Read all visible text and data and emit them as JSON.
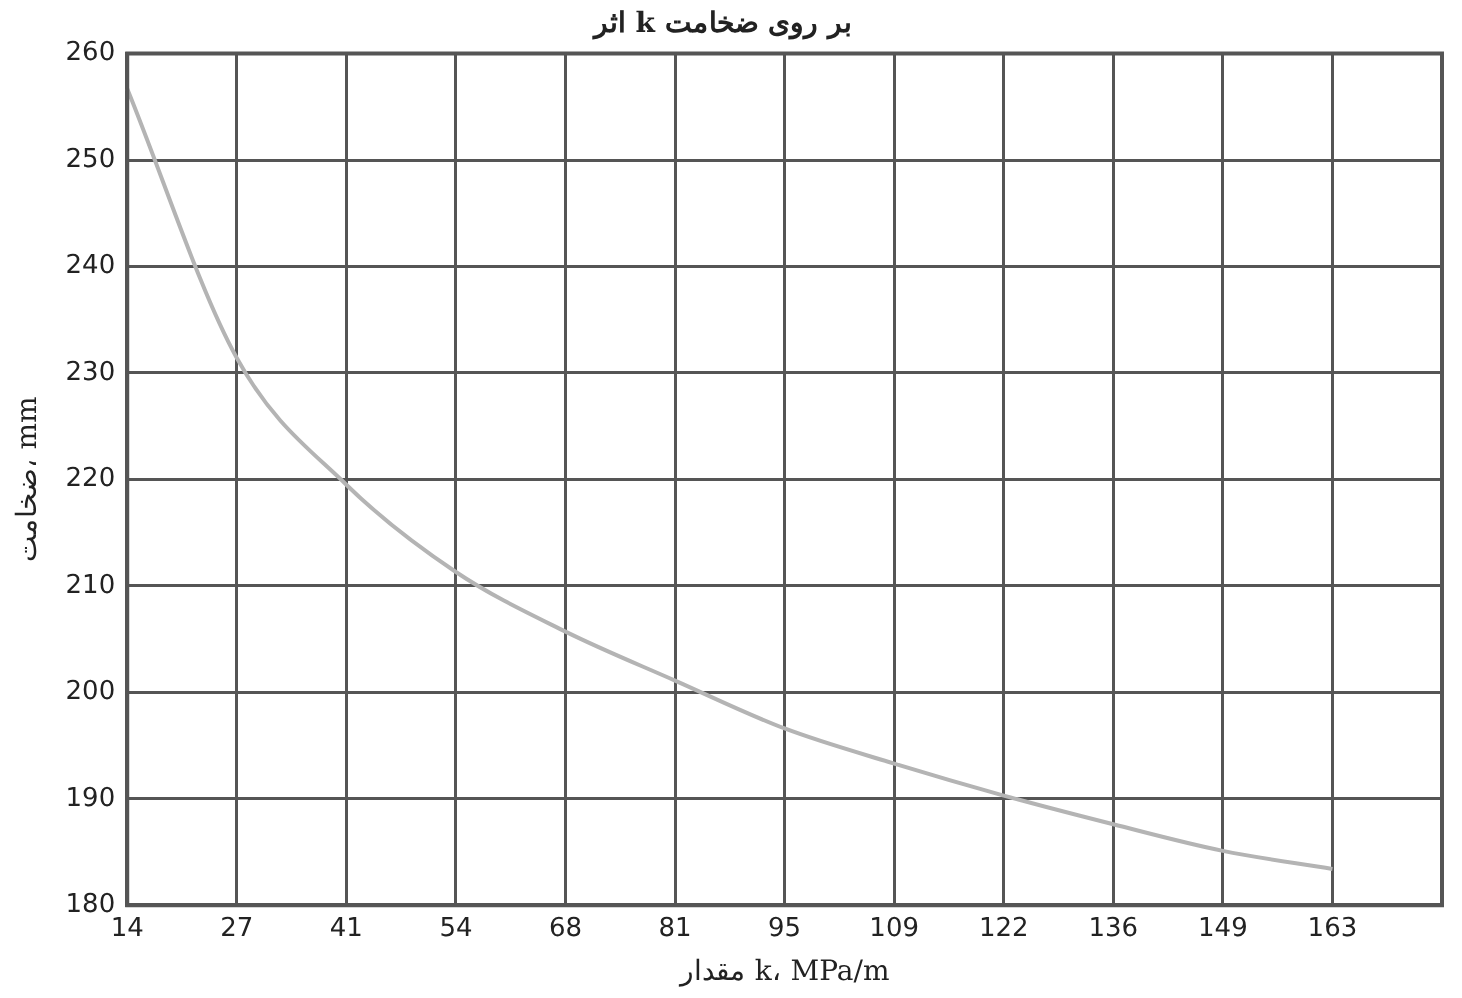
{
  "chart_data": {
    "type": "line",
    "title": "اثر k بر روی ضخامت",
    "xlabel": "مقدار k، MPa/m",
    "ylabel": "ضخامت، mm",
    "categories": [
      "14",
      "27",
      "41",
      "54",
      "68",
      "81",
      "95",
      "109",
      "122",
      "136",
      "149",
      "163",
      null
    ],
    "series": [
      {
        "color": "#b4b4b4",
        "values": [
          256.7,
          231.4,
          219.5,
          211.3,
          205.7,
          201.1,
          196.6,
          193.3,
          190.3,
          187.6,
          185.1,
          183.4,
          null
        ]
      }
    ],
    "ylim": [
      180,
      260
    ],
    "yticks": [
      180,
      190,
      200,
      210,
      220,
      230,
      240,
      250,
      260
    ],
    "grid": true,
    "legend": false,
    "marker": "none",
    "line_style": "solid"
  }
}
